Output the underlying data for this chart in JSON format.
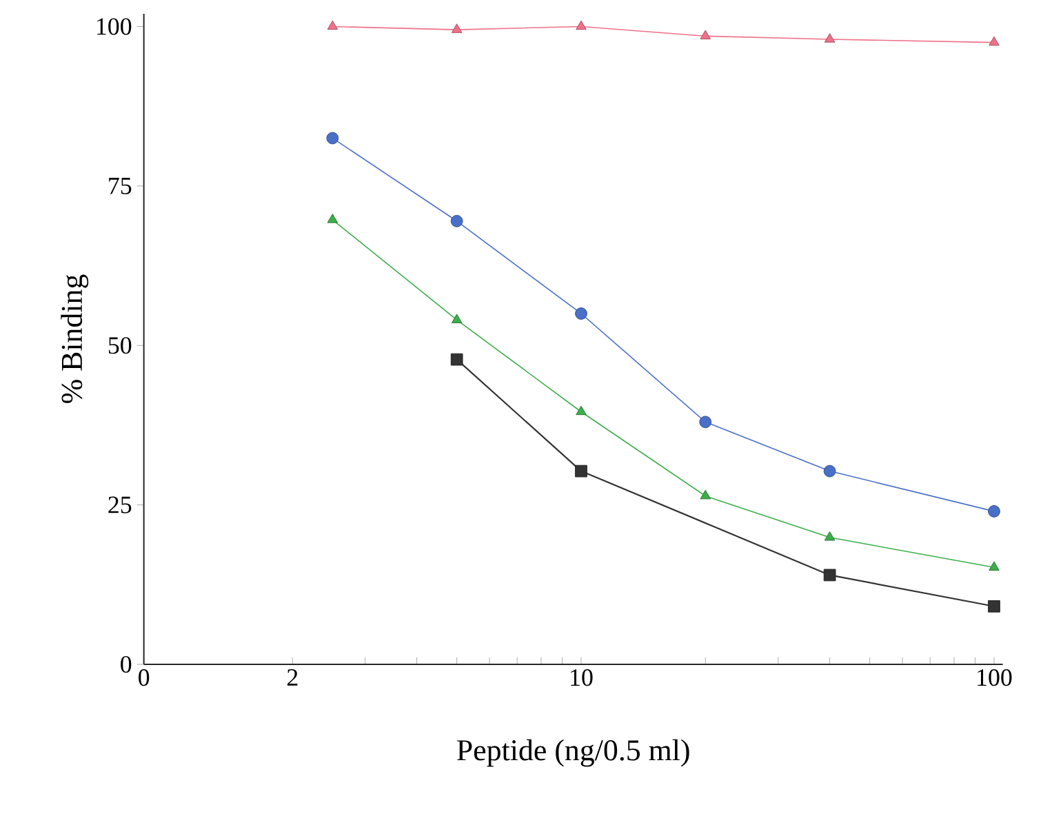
{
  "chart_data": {
    "type": "line",
    "xlabel": "Peptide (ng/0.5 ml)",
    "ylabel": "% Binding",
    "log": "x",
    "xlim": [
      0,
      105
    ],
    "xticks": [
      0,
      2,
      {
        "value": 3,
        "label": null
      },
      {
        "value": 4,
        "label": null
      },
      {
        "value": 5,
        "label": null
      },
      {
        "value": 6,
        "label": null
      },
      {
        "value": 7,
        "label": null
      },
      {
        "value": 8,
        "label": null
      },
      {
        "value": 9,
        "label": null
      },
      10,
      {
        "value": 20,
        "label": null
      },
      {
        "value": 30,
        "label": null
      },
      {
        "value": 40,
        "label": null
      },
      {
        "value": 50,
        "label": null
      },
      {
        "value": 60,
        "label": null
      },
      {
        "value": 70,
        "label": null
      },
      {
        "value": 80,
        "label": null
      },
      {
        "value": 90,
        "label": null
      },
      100
    ],
    "ylim": [
      0,
      102
    ],
    "yticks": [
      0,
      25,
      50,
      75,
      100
    ],
    "series": [
      {
        "color": "#f0708a",
        "marker": "triangle",
        "x": [
          2.5,
          5,
          10,
          20,
          40,
          100
        ],
        "values": [
          100,
          99.5,
          100,
          98.5,
          98,
          97.5
        ]
      },
      {
        "color": "#4a6fc8",
        "marker": "circle",
        "x": [
          2.5,
          5,
          10,
          20,
          40,
          100
        ],
        "values": [
          82.5,
          69.5,
          55,
          38,
          30.3,
          24
        ]
      },
      {
        "color": "#3cae4a",
        "marker": "triangle",
        "x": [
          2.5,
          5,
          10,
          20,
          40,
          100
        ],
        "values": [
          69.7,
          54,
          39.6,
          26.4,
          19.9,
          15.2
        ]
      },
      {
        "color": "#333333",
        "marker": "square",
        "x": [
          5,
          10,
          40,
          100
        ],
        "values": [
          47.8,
          30.3,
          14,
          9.1
        ]
      }
    ]
  }
}
